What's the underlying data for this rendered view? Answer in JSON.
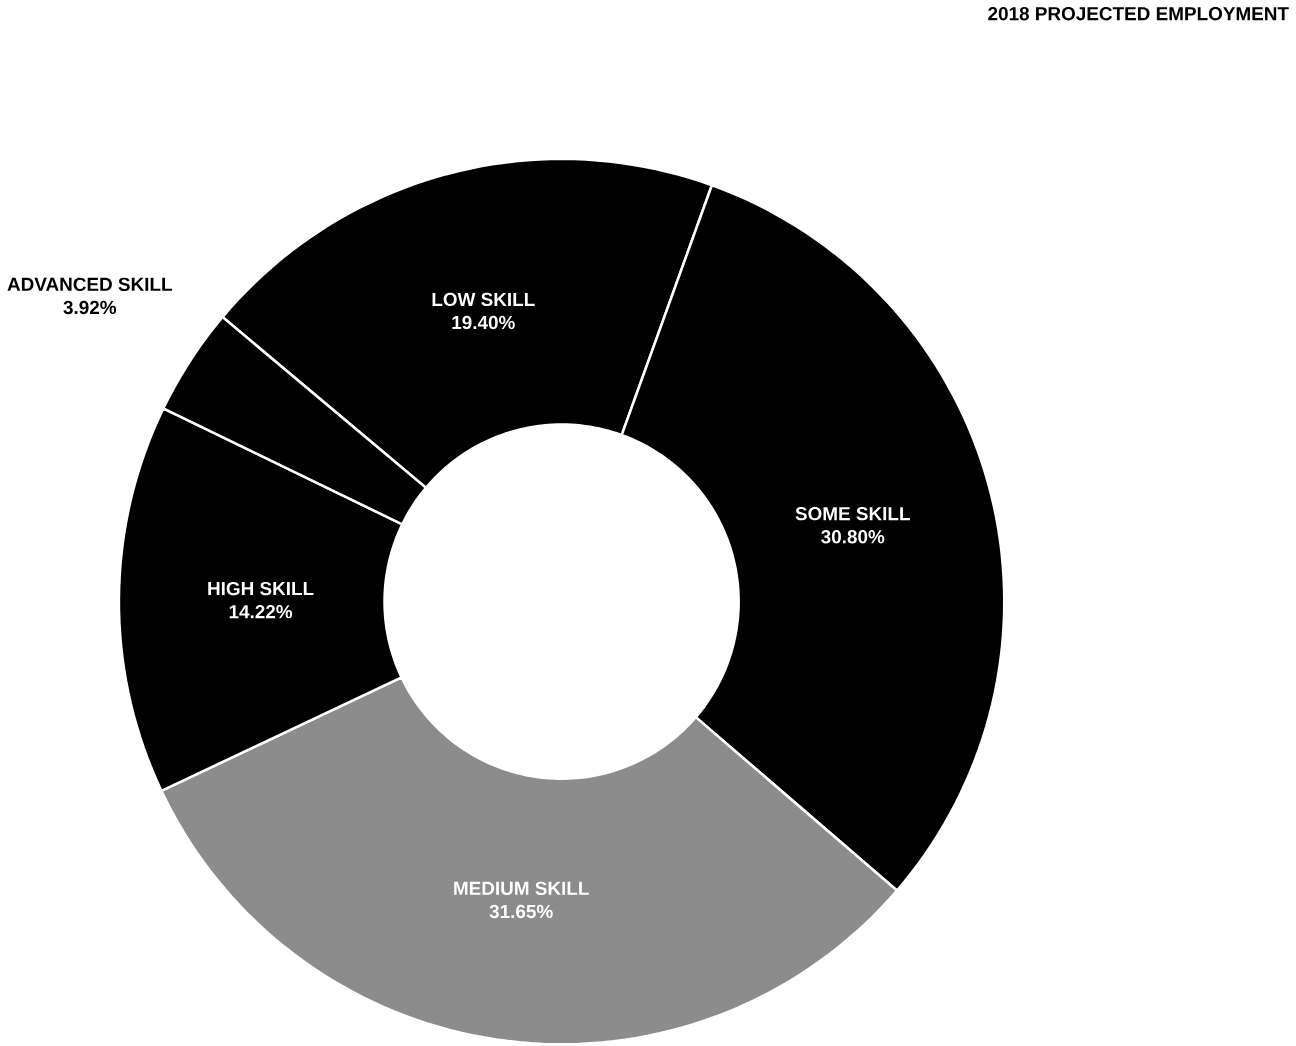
{
  "chart_data": {
    "type": "donut",
    "title": "2018 PROJECTED EMPLOYMENT",
    "categories": [
      "LOW SKILL",
      "SOME SKILL",
      "MEDIUM SKILL",
      "HIGH SKILL",
      "ADVANCED SKILL"
    ],
    "values": [
      19.4,
      30.8,
      31.65,
      14.22,
      3.92
    ],
    "value_labels": [
      "19.40%",
      "30.80%",
      "31.65%",
      "14.22%",
      "3.92%"
    ],
    "colors": [
      "#000000",
      "#000000",
      "#8c8c8c",
      "#000000",
      "#000000"
    ]
  }
}
